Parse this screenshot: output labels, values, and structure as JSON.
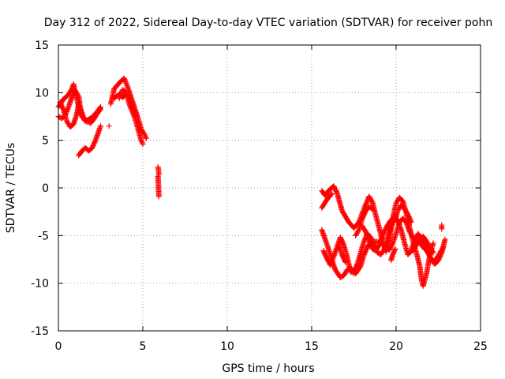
{
  "colors": {
    "series": "#ff0000",
    "grid": "#a0a0a0",
    "axis": "#000000",
    "background": "#ffffff"
  },
  "chart_data": {
    "type": "scatter",
    "title": "Day 312 of 2022, Sidereal Day-to-day VTEC variation (SDTVAR) for receiver pohn",
    "xlabel": "GPS time / hours",
    "ylabel": "SDTVAR / TECUs",
    "xlim": [
      0,
      25
    ],
    "ylim": [
      -15,
      15
    ],
    "xticks": [
      0,
      5,
      10,
      15,
      20,
      25
    ],
    "yticks": [
      -15,
      -10,
      -5,
      0,
      5,
      10,
      15
    ],
    "grid": true,
    "marker": "plus",
    "series": [
      {
        "name": "SDTVAR",
        "arcs": [
          [
            [
              0.0,
              8.5
            ],
            [
              0.3,
              9.3
            ],
            [
              0.6,
              9.8
            ],
            [
              0.8,
              10.4
            ],
            [
              0.9,
              10.9
            ],
            [
              1.0,
              10.0
            ],
            [
              1.2,
              8.6
            ],
            [
              1.4,
              7.5
            ],
            [
              1.6,
              7.0
            ],
            [
              1.9,
              6.8
            ],
            [
              2.1,
              7.2
            ],
            [
              2.3,
              7.8
            ],
            [
              2.5,
              8.3
            ]
          ],
          [
            [
              0.0,
              7.5
            ],
            [
              0.2,
              7.3
            ],
            [
              0.4,
              7.6
            ],
            [
              0.6,
              8.5
            ],
            [
              0.8,
              9.5
            ],
            [
              1.0,
              10.2
            ],
            [
              1.2,
              9.6
            ],
            [
              1.3,
              8.4
            ],
            [
              1.5,
              7.3
            ],
            [
              1.7,
              7.1
            ],
            [
              2.0,
              7.4
            ],
            [
              2.3,
              8.0
            ],
            [
              2.5,
              8.5
            ]
          ],
          [
            [
              0.1,
              9.0
            ],
            [
              0.3,
              8.2
            ],
            [
              0.5,
              7.0
            ],
            [
              0.7,
              6.4
            ],
            [
              0.9,
              6.7
            ],
            [
              1.1,
              7.8
            ],
            [
              1.2,
              8.8
            ]
          ],
          [
            [
              1.2,
              3.4
            ],
            [
              1.4,
              3.9
            ],
            [
              1.6,
              4.2
            ],
            [
              1.8,
              3.9
            ],
            [
              2.0,
              4.2
            ],
            [
              2.2,
              5.0
            ],
            [
              2.4,
              6.0
            ],
            [
              2.5,
              6.5
            ]
          ],
          [
            [
              3.0,
              6.5
            ]
          ],
          [
            [
              3.1,
              8.8
            ],
            [
              3.3,
              10.4
            ],
            [
              3.5,
              10.8
            ],
            [
              3.7,
              11.2
            ],
            [
              3.9,
              11.5
            ],
            [
              4.1,
              10.6
            ],
            [
              4.4,
              9.0
            ],
            [
              4.7,
              7.4
            ],
            [
              4.9,
              6.2
            ],
            [
              5.1,
              5.6
            ],
            [
              5.2,
              5.2
            ]
          ],
          [
            [
              3.6,
              9.4
            ],
            [
              3.8,
              10.3
            ],
            [
              4.0,
              10.1
            ],
            [
              4.2,
              8.8
            ],
            [
              4.5,
              7.5
            ],
            [
              4.7,
              6.3
            ],
            [
              4.9,
              5.0
            ],
            [
              5.0,
              4.6
            ]
          ],
          [
            [
              3.3,
              9.4
            ],
            [
              3.5,
              9.7
            ],
            [
              3.7,
              9.9
            ],
            [
              3.8,
              9.5
            ],
            [
              4.0,
              9.8
            ]
          ],
          [
            [
              5.9,
              2.2
            ],
            [
              5.95,
              1.5
            ],
            [
              5.9,
              1.2
            ],
            [
              5.95,
              -0.9
            ]
          ],
          [
            [
              15.6,
              -0.3
            ],
            [
              15.8,
              -0.8
            ],
            [
              16.0,
              -0.3
            ],
            [
              16.3,
              0.2
            ],
            [
              16.5,
              -0.5
            ],
            [
              16.8,
              -2.4
            ],
            [
              17.2,
              -3.6
            ],
            [
              17.5,
              -4.2
            ],
            [
              17.8,
              -3.6
            ],
            [
              18.1,
              -2.2
            ],
            [
              18.4,
              -0.9
            ],
            [
              18.6,
              -1.5
            ],
            [
              18.8,
              -2.9
            ],
            [
              19.0,
              -4.2
            ],
            [
              19.2,
              -5.6
            ],
            [
              19.4,
              -6.7
            ],
            [
              19.6,
              -5.5
            ],
            [
              19.8,
              -3.2
            ],
            [
              20.0,
              -1.6
            ],
            [
              20.2,
              -1.0
            ],
            [
              20.4,
              -1.4
            ],
            [
              20.6,
              -2.6
            ],
            [
              20.8,
              -4.2
            ],
            [
              21.0,
              -5.6
            ],
            [
              21.2,
              -6.8
            ],
            [
              21.4,
              -8.2
            ],
            [
              21.5,
              -9.6
            ],
            [
              21.6,
              -10.3
            ],
            [
              21.8,
              -9.0
            ],
            [
              22.0,
              -7.0
            ],
            [
              22.2,
              -5.8
            ]
          ],
          [
            [
              15.6,
              -4.4
            ],
            [
              15.8,
              -5.4
            ],
            [
              16.0,
              -6.4
            ],
            [
              16.2,
              -7.6
            ],
            [
              16.4,
              -8.6
            ],
            [
              16.7,
              -9.4
            ],
            [
              16.9,
              -9.2
            ],
            [
              17.1,
              -8.6
            ],
            [
              17.3,
              -8.4
            ],
            [
              17.5,
              -8.8
            ],
            [
              17.7,
              -8.0
            ],
            [
              17.9,
              -6.8
            ],
            [
              18.1,
              -5.6
            ],
            [
              18.3,
              -4.8
            ],
            [
              18.5,
              -5.2
            ],
            [
              18.7,
              -6.0
            ],
            [
              18.9,
              -6.8
            ],
            [
              19.1,
              -7.0
            ],
            [
              19.3,
              -6.4
            ],
            [
              19.5,
              -5.2
            ],
            [
              19.7,
              -4.0
            ],
            [
              19.9,
              -3.0
            ],
            [
              20.1,
              -3.4
            ],
            [
              20.3,
              -4.4
            ],
            [
              20.5,
              -5.8
            ],
            [
              20.7,
              -7.0
            ],
            [
              20.9,
              -6.6
            ],
            [
              21.1,
              -5.5
            ],
            [
              21.3,
              -4.8
            ],
            [
              21.6,
              -5.6
            ],
            [
              21.8,
              -6.4
            ],
            [
              22.0,
              -7.2
            ],
            [
              22.2,
              -7.8
            ],
            [
              22.4,
              -7.4
            ],
            [
              22.6,
              -6.8
            ],
            [
              22.8,
              -6.2
            ]
          ],
          [
            [
              15.7,
              -6.6
            ],
            [
              15.9,
              -7.4
            ],
            [
              16.1,
              -8.1
            ],
            [
              16.3,
              -7.2
            ],
            [
              16.5,
              -6.2
            ],
            [
              16.7,
              -5.2
            ],
            [
              16.9,
              -6.0
            ],
            [
              17.1,
              -7.2
            ],
            [
              17.3,
              -8.8
            ],
            [
              17.6,
              -9.0
            ],
            [
              17.9,
              -8.2
            ],
            [
              18.1,
              -7.0
            ],
            [
              18.3,
              -6.2
            ],
            [
              18.5,
              -5.7
            ],
            [
              18.8,
              -5.6
            ],
            [
              19.1,
              -5.8
            ],
            [
              19.4,
              -6.0
            ],
            [
              19.6,
              -6.5
            ],
            [
              19.8,
              -5.8
            ],
            [
              20.0,
              -4.8
            ],
            [
              20.2,
              -3.6
            ],
            [
              20.4,
              -3.2
            ],
            [
              20.6,
              -3.6
            ],
            [
              20.8,
              -4.6
            ],
            [
              21.0,
              -5.2
            ],
            [
              21.3,
              -5.6
            ],
            [
              21.6,
              -6.2
            ],
            [
              21.9,
              -6.8
            ],
            [
              22.1,
              -7.6
            ],
            [
              22.3,
              -8.0
            ],
            [
              22.5,
              -7.6
            ],
            [
              22.7,
              -6.8
            ],
            [
              22.9,
              -5.4
            ]
          ],
          [
            [
              15.6,
              -2.1
            ],
            [
              15.8,
              -1.5
            ],
            [
              16.0,
              -1.0
            ],
            [
              16.2,
              -0.6
            ]
          ],
          [
            [
              18.0,
              -4.0
            ],
            [
              18.2,
              -4.6
            ],
            [
              18.4,
              -5.6
            ],
            [
              18.6,
              -6.4
            ],
            [
              18.8,
              -6.6
            ],
            [
              19.0,
              -6.0
            ],
            [
              19.2,
              -5.0
            ],
            [
              19.4,
              -4.2
            ],
            [
              19.6,
              -3.6
            ],
            [
              19.8,
              -3.2
            ],
            [
              20.0,
              -3.0
            ]
          ],
          [
            [
              16.6,
              -6.0
            ],
            [
              16.8,
              -7.0
            ],
            [
              17.0,
              -7.8
            ]
          ],
          [
            [
              17.6,
              -5.0
            ],
            [
              17.8,
              -4.4
            ],
            [
              18.0,
              -3.2
            ],
            [
              18.2,
              -2.4
            ],
            [
              18.4,
              -2.0
            ],
            [
              18.6,
              -2.2
            ]
          ],
          [
            [
              22.7,
              -3.9
            ],
            [
              22.7,
              -4.3
            ]
          ],
          [
            [
              19.9,
              -3.6
            ],
            [
              20.1,
              -2.4
            ],
            [
              20.3,
              -1.8
            ],
            [
              20.5,
              -2.2
            ],
            [
              20.7,
              -2.8
            ],
            [
              20.9,
              -3.6
            ]
          ],
          [
            [
              19.7,
              -7.6
            ],
            [
              19.8,
              -7.0
            ],
            [
              19.95,
              -6.4
            ]
          ],
          [
            [
              21.0,
              -6.6
            ],
            [
              21.2,
              -6.0
            ],
            [
              21.4,
              -5.4
            ],
            [
              21.6,
              -5.1
            ],
            [
              21.8,
              -5.6
            ],
            [
              22.0,
              -6.2
            ],
            [
              22.2,
              -6.8
            ]
          ]
        ]
      }
    ]
  }
}
